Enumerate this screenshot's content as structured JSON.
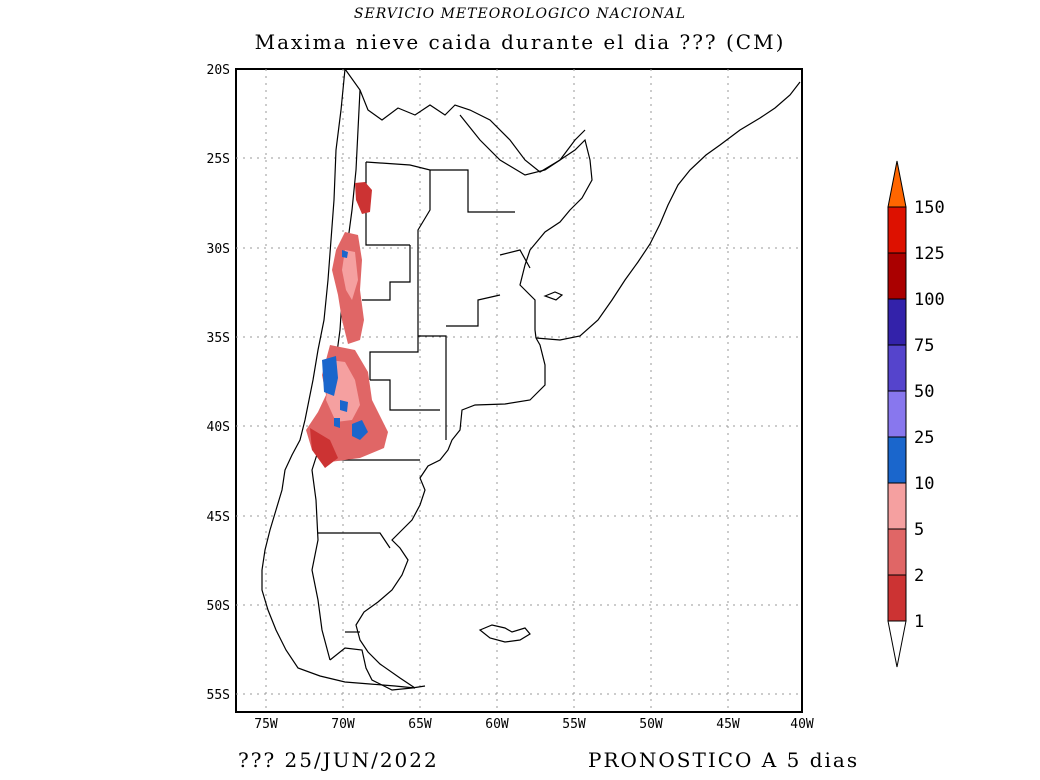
{
  "header": {
    "organization": "SERVICIO METEOROLOGICO NACIONAL",
    "title": "Maxima nieve caida durante el dia ??? (CM)"
  },
  "footer": {
    "date_label": "???  25/JUN/2022",
    "forecast_label": "PRONOSTICO A 5 dias"
  },
  "map": {
    "lat_labels": [
      "20S",
      "25S",
      "30S",
      "35S",
      "40S",
      "45S",
      "50S",
      "55S"
    ],
    "lon_labels": [
      "75W",
      "70W",
      "65W",
      "60W",
      "55W",
      "50W",
      "45W",
      "40W"
    ],
    "grid": true
  },
  "colorbar": {
    "labels": [
      "1",
      "2",
      "5",
      "10",
      "25",
      "50",
      "75",
      "100",
      "125",
      "150"
    ],
    "colors": [
      "#cc3333",
      "#e06666",
      "#f5a0a0",
      "#1a66cc",
      "#8877ee",
      "#5544cc",
      "#3322aa",
      "#aa0000",
      "#dd1100",
      "#ff6600"
    ]
  }
}
